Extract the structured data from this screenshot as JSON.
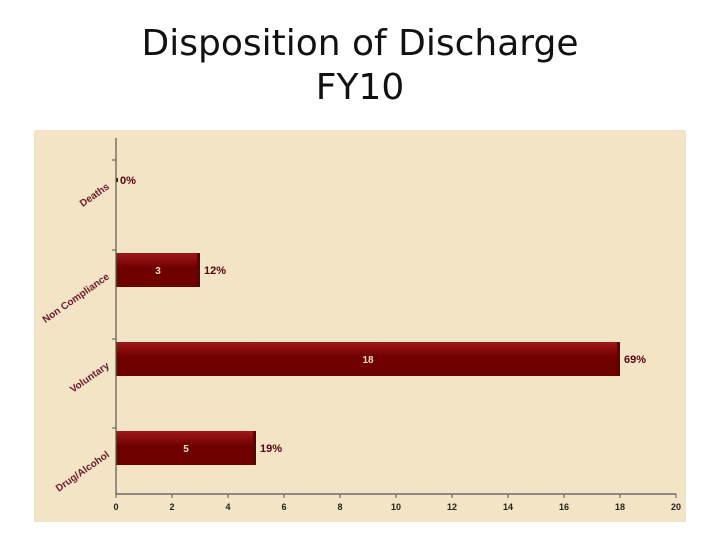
{
  "title": {
    "line1": "Disposition of Discharge",
    "line2": "FY10"
  },
  "colors": {
    "plot_background": "#F2E4C4",
    "bar_fill": "#6E0000",
    "bar_highlight": "#A01818",
    "bar_end": "#4A0A14",
    "pct_text": "#5A0010",
    "value_text": "#EADCC8",
    "category_text": "#6E1A2E"
  },
  "chart_data": {
    "type": "bar",
    "orientation": "horizontal",
    "title": "Disposition of Discharge FY10",
    "categories": [
      "Deaths",
      "Non Compliance",
      "Voluntary",
      "Drug/Alcohol"
    ],
    "values": [
      0,
      3,
      18,
      5
    ],
    "value_labels": [
      "",
      "3",
      "18",
      "5"
    ],
    "percent_labels": [
      "0%",
      "12%",
      "69%",
      "19%"
    ],
    "xlim": [
      0,
      20
    ],
    "xticks": [
      "0",
      "2",
      "4",
      "6",
      "8",
      "10",
      "12",
      "14",
      "16",
      "18",
      "20"
    ],
    "xlabel": "",
    "ylabel": "",
    "grid": false,
    "legend": "none"
  }
}
